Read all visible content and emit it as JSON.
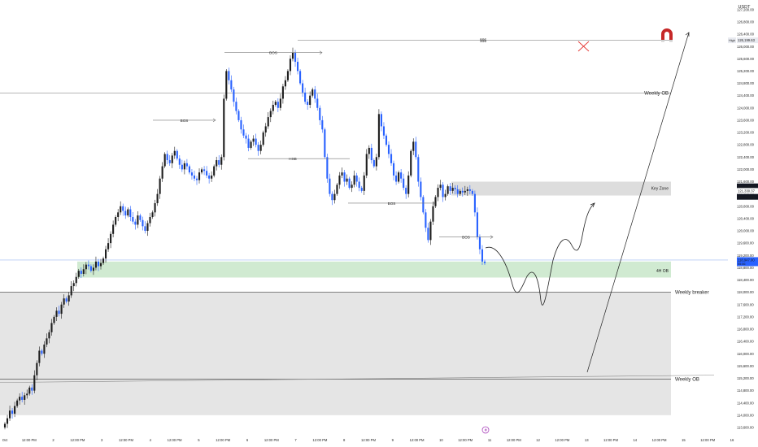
{
  "chart_data": {
    "type": "candlestick",
    "currency": "USDT",
    "ylim": [
      113600,
      127300
    ],
    "x_tick_labels": [
      "Oct",
      "12:00 PM",
      "2",
      "12:00 PM",
      "3",
      "12:00 PM",
      "4",
      "12:00 PM",
      "5",
      "12:00 PM",
      "6",
      "12:00 PM",
      "7",
      "12:00 PM",
      "8",
      "12:00 PM",
      "9",
      "12:00 PM",
      "10",
      "12:00 PM",
      "11",
      "12:00 PM",
      "12",
      "12:00 PM",
      "13",
      "12:00 PM",
      "14",
      "12:00 PM",
      "15",
      "12:00 PM",
      "16"
    ],
    "y_tick_labels": [
      "127,200.00",
      "126,800.00",
      "126,400.00",
      "126,000.00",
      "125,600.00",
      "125,200.00",
      "124,800.00",
      "124,400.00",
      "124,000.00",
      "123,600.00",
      "123,200.00",
      "122,800.00",
      "122,400.00",
      "122,000.00",
      "121,600.00",
      "121,200.00",
      "120,800.00",
      "120,400.00",
      "120,000.00",
      "119,600.00",
      "119,200.00",
      "118,800.00",
      "118,400.00",
      "118,000.00",
      "117,600.00",
      "117,200.00",
      "116,800.00",
      "116,400.00",
      "116,000.00",
      "115,600.00",
      "115,200.00",
      "114,800.00",
      "114,400.00",
      "114,000.00",
      "113,600.00"
    ],
    "price_badges": {
      "high_label": "High",
      "high_value": "126,199.63",
      "key_upper": "121,448.37",
      "key_lower_small": "121,330.37",
      "key_lower": "121,106.75",
      "current": "118,947.00",
      "current_sub": "05:56"
    },
    "zones": [
      {
        "label": "Key Zone",
        "top": 121600,
        "bottom": 121150,
        "color": "#d9d9d9"
      },
      {
        "label": "4H OB",
        "top": 119000,
        "bottom": 118480,
        "color": "#c8e6c9"
      },
      {
        "label": "Weekly breaker",
        "top": 118000,
        "bottom": 114000,
        "color": "#e4e4e4"
      }
    ],
    "levels": [
      {
        "label": "$$$",
        "price": 126200
      },
      {
        "label": "Weekly OB",
        "price": 124480
      },
      {
        "label": "Weekly OB",
        "price": 115250
      }
    ],
    "annotations": [
      "BOS",
      "BOS",
      "BOS",
      "BOS",
      "HSB",
      "BOS"
    ],
    "close_series": [
      113720,
      113900,
      114150,
      114050,
      114300,
      114480,
      114600,
      114500,
      114650,
      114700,
      114900,
      114800,
      115300,
      115700,
      116100,
      116000,
      116300,
      116500,
      116700,
      117000,
      117200,
      117400,
      117300,
      117600,
      117800,
      117700,
      117900,
      118200,
      118300,
      118500,
      118700,
      118600,
      118750,
      118900,
      118850,
      118700,
      118800,
      119000,
      118850,
      118950,
      119100,
      119400,
      119600,
      119900,
      120200,
      120450,
      120600,
      120800,
      120650,
      120500,
      120700,
      120450,
      120300,
      120200,
      120500,
      120350,
      120150,
      120000,
      120250,
      120450,
      120600,
      120900,
      121200,
      121700,
      122100,
      122500,
      122300,
      122200,
      122450,
      122600,
      122350,
      122150,
      122000,
      122200,
      122100,
      121900,
      121800,
      121700,
      121650,
      121900,
      122000,
      121950,
      121800,
      121700,
      121800,
      122100,
      122300,
      122150,
      122400,
      124300,
      125200,
      124900,
      124600,
      124200,
      123900,
      123600,
      123300,
      123100,
      123000,
      122700,
      122900,
      123000,
      122800,
      122600,
      122800,
      123200,
      123400,
      123700,
      123900,
      124100,
      124200,
      124000,
      124300,
      124700,
      124900,
      125200,
      125600,
      125800,
      125500,
      125200,
      124800,
      124500,
      124200,
      124100,
      124400,
      124600,
      124300,
      124000,
      123600,
      123300,
      122400,
      121700,
      121200,
      121000,
      121200,
      121500,
      121800,
      121900,
      121600,
      121700,
      121400,
      121500,
      121800,
      121600,
      121400,
      121300,
      121800,
      122500,
      122700,
      122300,
      122100,
      122400,
      123800,
      123400,
      123100,
      122800,
      122500,
      122200,
      121800,
      121600,
      121900,
      121700,
      121400,
      121200,
      121800,
      122600,
      122900,
      122400,
      121600,
      121100,
      120600,
      120100,
      119700,
      120300,
      120800,
      121100,
      121400,
      121500,
      121100,
      121200,
      121450,
      121300,
      121400,
      121350,
      121200,
      121300,
      121250,
      121300,
      121350,
      121300,
      121200,
      120600,
      119800,
      119400,
      119000,
      118950
    ]
  }
}
